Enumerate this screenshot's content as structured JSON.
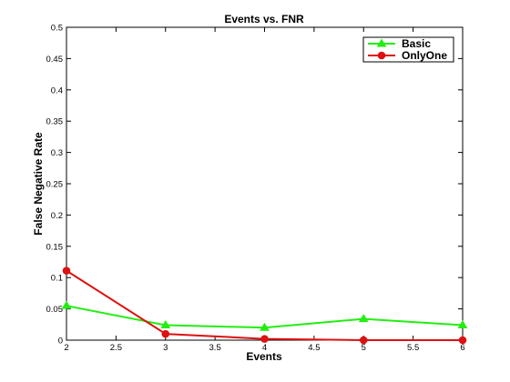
{
  "chart_data": {
    "type": "line",
    "title": "Events vs. FNR",
    "xlabel": "Events",
    "ylabel": "False Negative Rate",
    "xlim": [
      2,
      6
    ],
    "ylim": [
      0,
      0.5
    ],
    "x_ticks": [
      "2",
      "2.5",
      "3",
      "3.5",
      "4",
      "4.5",
      "5",
      "5.5",
      "6"
    ],
    "y_ticks": [
      "0",
      "0.05",
      "0.1",
      "0.15",
      "0.2",
      "0.25",
      "0.3",
      "0.35",
      "0.4",
      "0.45",
      "0.5"
    ],
    "grid": false,
    "legend_position": "top-right",
    "x": [
      2,
      3,
      4,
      5,
      6
    ],
    "series": [
      {
        "name": "Basic",
        "values": [
          0.055,
          0.024,
          0.02,
          0.034,
          0.024
        ],
        "color": "#22ee11",
        "marker": "triangle"
      },
      {
        "name": "OnlyOne",
        "values": [
          0.111,
          0.01,
          0.002,
          0.0,
          0.0
        ],
        "color": "#dd1111",
        "marker": "circle"
      }
    ]
  }
}
